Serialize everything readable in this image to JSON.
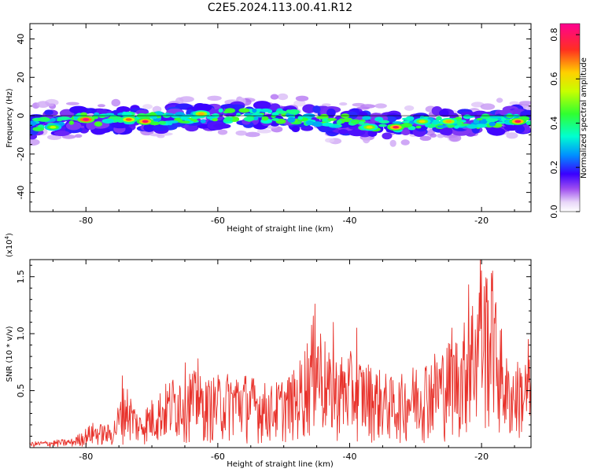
{
  "figure": {
    "title": "C2E5.2024.113.00.41.R12"
  },
  "chart_data": [
    {
      "type": "heatmap",
      "name": "spectrogram",
      "xlabel": "Height of straight line (km)",
      "ylabel": "Frequency (Hz)",
      "xlim": [
        -88.5,
        -12.5
      ],
      "ylim": [
        -50,
        48
      ],
      "xticks": [
        -80,
        -60,
        -40,
        -20
      ],
      "yticks": [
        -40,
        -20,
        0,
        20,
        40
      ],
      "colorbar": {
        "label": "Normalized spectral amplitude",
        "range": [
          0,
          0.85
        ],
        "ticks": [
          0.0,
          0.2,
          0.4,
          0.6,
          0.8
        ]
      },
      "ridge_center_hz": [
        [
          -88,
          -5
        ],
        [
          -80,
          -2
        ],
        [
          -70,
          -2
        ],
        [
          -60,
          0
        ],
        [
          -52,
          0
        ],
        [
          -45,
          -2
        ],
        [
          -40,
          -3
        ],
        [
          -35,
          -5
        ],
        [
          -30,
          -4
        ],
        [
          -25,
          -3
        ],
        [
          -20,
          -3
        ],
        [
          -15,
          -2
        ],
        [
          -12.5,
          -2
        ]
      ],
      "peaks": [
        {
          "x": -80,
          "y": -2,
          "a": 0.85
        },
        {
          "x": -73.5,
          "y": -2,
          "a": 0.7
        },
        {
          "x": -71,
          "y": -3,
          "a": 0.8
        },
        {
          "x": -62.5,
          "y": 1,
          "a": 0.65
        },
        {
          "x": -37,
          "y": -6,
          "a": 0.6
        },
        {
          "x": -33,
          "y": -6,
          "a": 0.8
        },
        {
          "x": -29,
          "y": -3,
          "a": 0.6
        },
        {
          "x": -25,
          "y": -3,
          "a": 0.65
        },
        {
          "x": -14.5,
          "y": -3,
          "a": 0.8
        },
        {
          "x": -85,
          "y": -6,
          "a": 0.55
        }
      ]
    },
    {
      "type": "line",
      "name": "snr",
      "xlabel": "Height of straight line (km)",
      "ylabel": "SNR (10 * v/v)",
      "exponent_label": "(x10",
      "exponent_power": "4",
      "exponent_close": ")",
      "xlim": [
        -88.5,
        -12.5
      ],
      "ylim": [
        0,
        1.65
      ],
      "xticks": [
        -80,
        -60,
        -40,
        -20
      ],
      "yticks": [
        0.5,
        1.0,
        1.5
      ],
      "ytick_labels": [
        "0.5",
        "1.0",
        "1.5"
      ],
      "color": "#e8312a",
      "series_envelope": [
        {
          "x": -88.5,
          "y": 0.05
        },
        {
          "x": -82,
          "y": 0.08
        },
        {
          "x": -79,
          "y": 0.22
        },
        {
          "x": -76,
          "y": 0.2
        },
        {
          "x": -74,
          "y": 0.6
        },
        {
          "x": -72,
          "y": 0.3
        },
        {
          "x": -69,
          "y": 0.5
        },
        {
          "x": -65,
          "y": 0.75
        },
        {
          "x": -62,
          "y": 0.6
        },
        {
          "x": -57,
          "y": 0.7
        },
        {
          "x": -52,
          "y": 0.55
        },
        {
          "x": -48,
          "y": 0.7
        },
        {
          "x": -45,
          "y": 1.25
        },
        {
          "x": -43,
          "y": 0.8
        },
        {
          "x": -40,
          "y": 0.85
        },
        {
          "x": -37,
          "y": 0.75
        },
        {
          "x": -33,
          "y": 0.6
        },
        {
          "x": -30,
          "y": 0.75
        },
        {
          "x": -26,
          "y": 0.9
        },
        {
          "x": -23,
          "y": 1.05
        },
        {
          "x": -20,
          "y": 1.65
        },
        {
          "x": -18.5,
          "y": 1.55
        },
        {
          "x": -16,
          "y": 0.75
        },
        {
          "x": -13,
          "y": 0.8
        }
      ],
      "spikes": [
        {
          "x": -74.5,
          "y": 0.63
        },
        {
          "x": -63,
          "y": 0.78
        },
        {
          "x": -45.3,
          "y": 1.26
        },
        {
          "x": -42.5,
          "y": 1.1
        },
        {
          "x": -39,
          "y": 1.05
        },
        {
          "x": -24.5,
          "y": 1.05
        },
        {
          "x": -22,
          "y": 1.43
        },
        {
          "x": -20.2,
          "y": 1.65
        },
        {
          "x": -19.2,
          "y": 1.48
        },
        {
          "x": -18.4,
          "y": 1.55
        },
        {
          "x": -13,
          "y": 0.95
        }
      ]
    }
  ]
}
